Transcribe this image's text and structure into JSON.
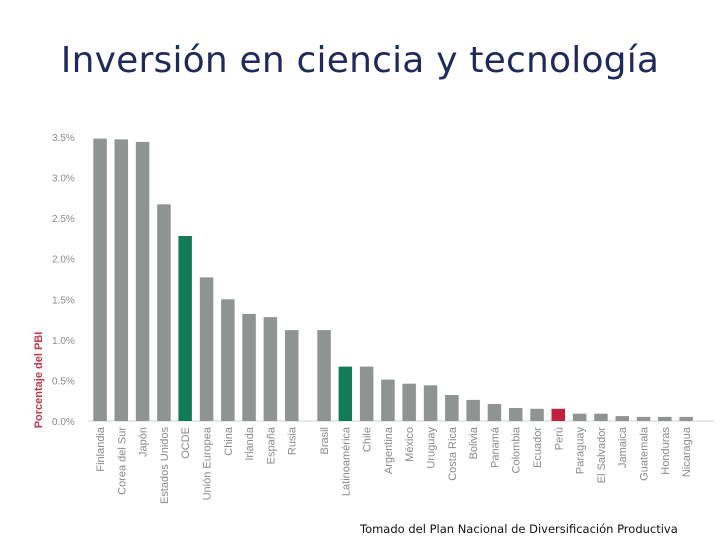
{
  "title": "Inversión en ciencia y tecnología",
  "source_note": "Tomado del Plan Nacional de Diversificación Productiva",
  "colors": {
    "default_bar": "#8f9392",
    "highlight_green": "#137a58",
    "highlight_red": "#c2213e",
    "axis_text": "#c03a4e",
    "tick_text": "#8a8a8a",
    "title": "#1f2a5c"
  },
  "chart_data": {
    "type": "bar",
    "ylabel": "Porcentaje del PBI",
    "ylim": [
      0,
      3.5
    ],
    "yticks": [
      "0.0%",
      "0.5%",
      "1.0%",
      "1.5%",
      "2.0%",
      "2.5%",
      "3.0%",
      "3.5%"
    ],
    "ytick_values": [
      0,
      0.5,
      1.0,
      1.5,
      2.0,
      2.5,
      3.0,
      3.5
    ],
    "grid": false,
    "categories": [
      "Finlandia",
      "Corea del Sur",
      "Japón",
      "Estados Unidos",
      "OCDE",
      "Unión Europea",
      "China",
      "Irlanda",
      "España",
      "Rusia",
      "Brasil",
      "Latinoamérica",
      "Chile",
      "Argentina",
      "México",
      "Uruguay",
      "Costa Rica",
      "Bolivia",
      "Panamá",
      "Colombia",
      "Ecuador",
      "Perú",
      "Paraguay",
      "El Salvador",
      "Jamaica",
      "Guatemala",
      "Honduras",
      "Nicaragua"
    ],
    "values": [
      3.48,
      3.47,
      3.44,
      2.67,
      2.28,
      1.77,
      1.5,
      1.32,
      1.28,
      1.12,
      1.12,
      0.67,
      0.67,
      0.51,
      0.46,
      0.44,
      0.32,
      0.26,
      0.21,
      0.16,
      0.15,
      0.15,
      0.09,
      0.09,
      0.06,
      0.05,
      0.05,
      0.05
    ],
    "highlight": {
      "OCDE": "green",
      "Latinoamérica": "green",
      "Perú": "red"
    }
  }
}
